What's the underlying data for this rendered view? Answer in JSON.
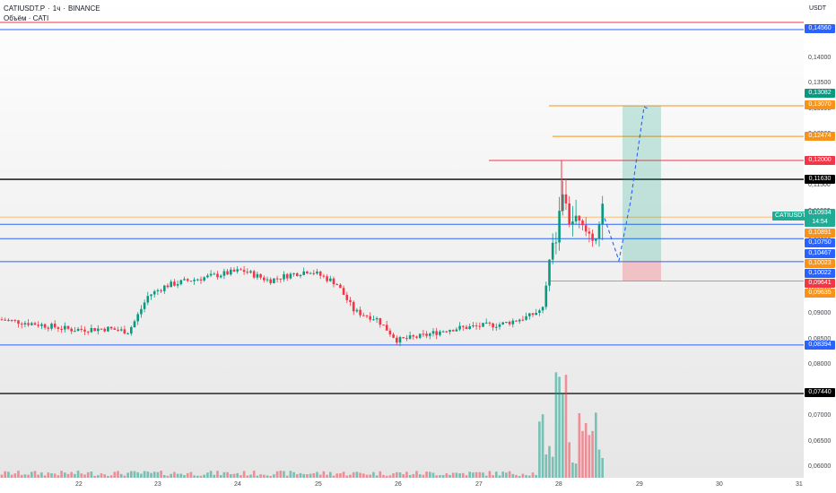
{
  "header": {
    "symbol": "CATIUSDT.P",
    "interval": "1ч",
    "exchange": "BINANCE",
    "volume_label": "Объём · CATI"
  },
  "price_axis": {
    "currency": "USDT",
    "ticks": [
      "0,14000",
      "0,13500",
      "0,13000",
      "0,12500",
      "0,11500",
      "0,11000",
      "0,10500",
      "0,09500",
      "0,09000",
      "0,08500",
      "0,08000",
      "0,07000",
      "0,06500",
      "0,06000"
    ],
    "tags": [
      {
        "value": "0,14560",
        "color": "#2962ff"
      },
      {
        "value": "0,13082",
        "color": "#089981"
      },
      {
        "value": "0,13070",
        "color": "#f7931a"
      },
      {
        "value": "0,12474",
        "color": "#f7931a"
      },
      {
        "value": "0,12000",
        "color": "#f23645"
      },
      {
        "value": "0,11630",
        "color": "#000000"
      },
      {
        "value": "0,10934",
        "color": "#22ab94",
        "countdown": "14:54"
      },
      {
        "value": "0,10891",
        "color": "#f7931a"
      },
      {
        "value": "0,10750",
        "color": "#2962ff"
      },
      {
        "value": "0,10467",
        "color": "#2962ff"
      },
      {
        "value": "0,10023",
        "color": "#f7931a"
      },
      {
        "value": "0,10022",
        "color": "#2962ff"
      },
      {
        "value": "0,09641",
        "color": "#f23645"
      },
      {
        "value": "0,09635",
        "color": "#f7931a"
      },
      {
        "value": "0,08394",
        "color": "#2962ff"
      },
      {
        "value": "0,07440",
        "color": "#000000"
      }
    ]
  },
  "symbol_label": "CATIUSDT.P",
  "time_axis": [
    "22",
    "23",
    "24",
    "25",
    "26",
    "27",
    "28",
    "29",
    "30",
    "31"
  ],
  "colors": {
    "up": "#089981",
    "down": "#f23645",
    "blue_line": "#2962ff",
    "orange_line": "#f7931a",
    "red_line": "#f23645"
  },
  "chart_data": {
    "type": "candlestick",
    "timeframe": "1h",
    "y_range": [
      0.0595,
      0.1475
    ],
    "horizontal_levels": [
      {
        "price": 0.1456,
        "color": "#2962ff"
      },
      {
        "price": 0.147,
        "color": "#f23645"
      },
      {
        "price": 0.1163,
        "color": "#000000"
      },
      {
        "price": 0.1075,
        "color": "#2962ff"
      },
      {
        "price": 0.1047,
        "color": "#2962ff"
      },
      {
        "price": 0.1002,
        "color": "#2962ff"
      },
      {
        "price": 0.0839,
        "color": "#2962ff"
      },
      {
        "price": 0.0744,
        "color": "#000000"
      },
      {
        "price": 0.1089,
        "color": "#f7931a"
      }
    ],
    "target_levels": [
      {
        "price": 0.1307,
        "color": "#f7931a"
      },
      {
        "price": 0.1247,
        "color": "#f7931a"
      },
      {
        "price": 0.12,
        "color": "#f23645"
      },
      {
        "price": 0.0964,
        "color": "#f7931a"
      }
    ],
    "long_position": {
      "entry": 0.1002,
      "target": 0.1307,
      "stop": 0.0964
    },
    "last_price": 0.10934
  }
}
